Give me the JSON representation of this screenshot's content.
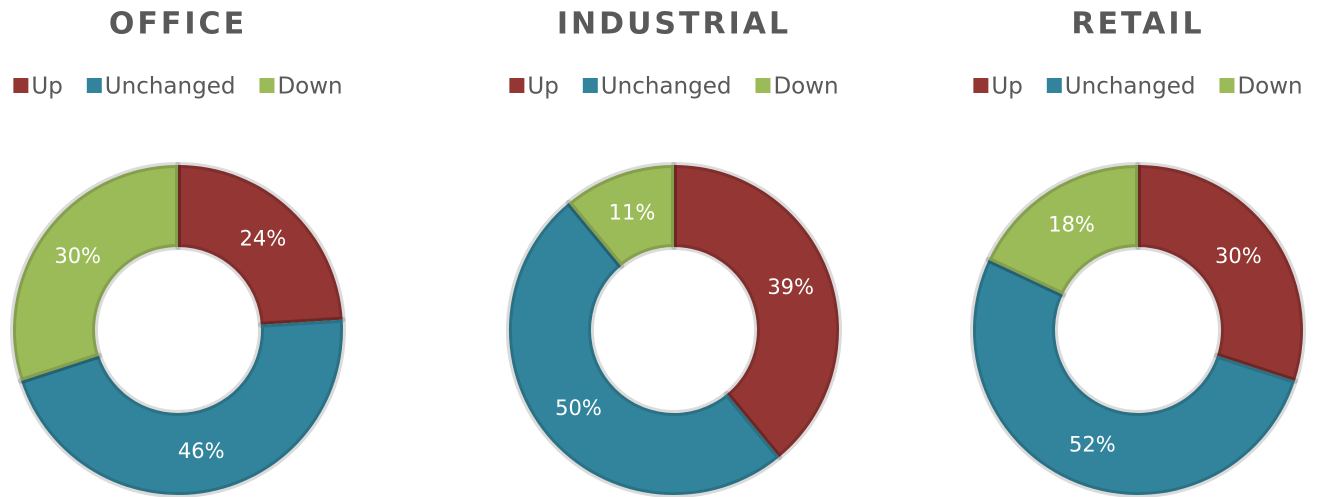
{
  "chart_data": [
    {
      "type": "pie",
      "title": "OFFICE",
      "categories": [
        "Up",
        "Unchanged",
        "Down"
      ],
      "values": [
        24,
        46,
        30
      ],
      "value_labels": [
        "24%",
        "46%",
        "30%"
      ],
      "colors": [
        "#943634",
        "#31849b",
        "#9bbb59"
      ]
    },
    {
      "type": "pie",
      "title": "INDUSTRIAL",
      "categories": [
        "Up",
        "Unchanged",
        "Down"
      ],
      "values": [
        39,
        50,
        11
      ],
      "value_labels": [
        "39%",
        "50%",
        "11%"
      ],
      "colors": [
        "#943634",
        "#31849b",
        "#9bbb59"
      ]
    },
    {
      "type": "pie",
      "title": "RETAIL",
      "categories": [
        "Up",
        "Unchanged",
        "Down"
      ],
      "values": [
        30,
        52,
        18
      ],
      "value_labels": [
        "30%",
        "52%",
        "18%"
      ],
      "colors": [
        "#943634",
        "#31849b",
        "#9bbb59"
      ]
    }
  ]
}
